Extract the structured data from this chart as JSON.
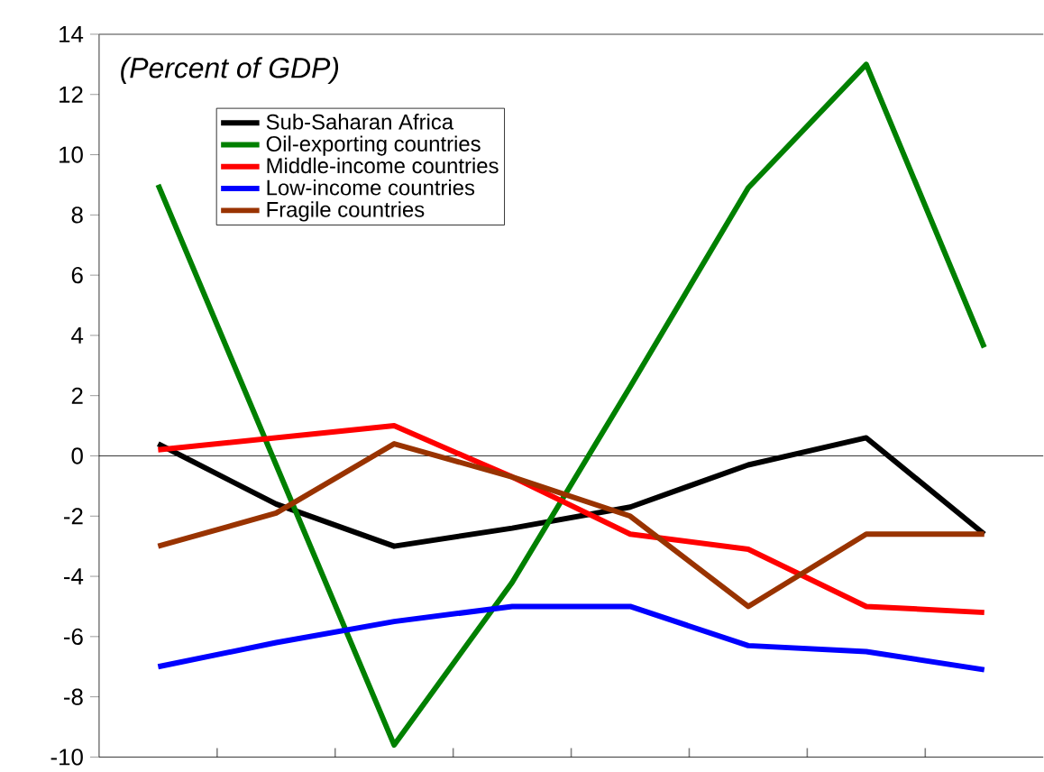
{
  "chart_data": {
    "type": "line",
    "annotations": [
      "(Percent of GDP)"
    ],
    "categories": [
      null,
      null,
      null,
      null,
      null,
      null,
      null,
      null
    ],
    "series": [
      {
        "name": "Sub-Saharan Africa",
        "color": "#000000",
        "values": [
          0.4,
          -1.6,
          -3.0,
          -2.4,
          -1.7,
          -0.3,
          0.6,
          -2.6
        ]
      },
      {
        "name": "Oil-exporting countries",
        "color": "#008000",
        "values": [
          9.0,
          -0.3,
          -9.6,
          -4.2,
          2.3,
          8.9,
          13.0,
          3.6
        ]
      },
      {
        "name": "Middle-income countries",
        "color": "#ff0000",
        "values": [
          0.2,
          0.6,
          1.0,
          -0.7,
          -2.6,
          -3.1,
          -5.0,
          -5.2
        ]
      },
      {
        "name": "Low-income countries",
        "color": "#0000ff",
        "values": [
          -7.0,
          -6.2,
          -5.5,
          -5.0,
          -5.0,
          -6.3,
          -6.5,
          -7.1
        ]
      },
      {
        "name": "Fragile countries",
        "color": "#993300",
        "values": [
          -3.0,
          -1.9,
          0.4,
          -0.7,
          -2.0,
          -5.0,
          -2.6,
          -2.6
        ]
      }
    ],
    "ylim": [
      -10,
      14
    ],
    "yticks": [
      -10,
      -8,
      -6,
      -4,
      -2,
      0,
      2,
      4,
      6,
      8,
      10,
      12,
      14
    ],
    "ref_lines": [
      {
        "axis": "y",
        "value": 0,
        "color": "#000000"
      }
    ],
    "legend": "top left",
    "grid": false,
    "marker": "none",
    "line_style": "solid"
  }
}
